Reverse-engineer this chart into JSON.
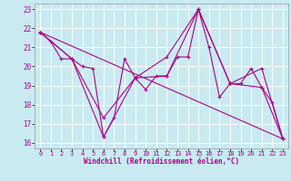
{
  "background_color": "#c8eaf0",
  "grid_color": "#ffffff",
  "line_color": "#aa0088",
  "xlabel": "Windchill (Refroidissement éolien,°C)",
  "xlim": [
    -0.5,
    23.5
  ],
  "ylim": [
    15.7,
    23.3
  ],
  "yticks": [
    16,
    17,
    18,
    19,
    20,
    21,
    22,
    23
  ],
  "xticks": [
    0,
    1,
    2,
    3,
    4,
    5,
    6,
    7,
    8,
    9,
    10,
    11,
    12,
    13,
    14,
    15,
    16,
    17,
    18,
    19,
    20,
    21,
    22,
    23
  ],
  "series": [
    {
      "x": [
        0,
        1,
        2,
        3,
        4,
        5,
        6,
        7,
        8,
        9,
        10,
        11,
        12,
        13,
        14,
        15,
        16,
        17,
        18,
        19,
        20,
        21,
        22,
        23
      ],
      "y": [
        21.8,
        21.3,
        20.4,
        20.4,
        20.0,
        19.9,
        16.3,
        17.3,
        20.4,
        19.4,
        18.8,
        19.5,
        19.5,
        20.5,
        20.5,
        23.0,
        21.0,
        18.4,
        19.1,
        19.1,
        19.9,
        18.9,
        18.1,
        16.2
      ]
    },
    {
      "x": [
        0,
        23
      ],
      "y": [
        21.8,
        16.2
      ]
    },
    {
      "x": [
        0,
        3,
        6,
        9,
        12,
        15,
        18,
        21,
        23
      ],
      "y": [
        21.8,
        20.4,
        16.3,
        19.4,
        19.5,
        23.0,
        19.1,
        18.9,
        16.2
      ]
    },
    {
      "x": [
        0,
        3,
        6,
        9,
        12,
        15,
        18,
        21,
        23
      ],
      "y": [
        21.8,
        20.4,
        17.3,
        19.4,
        20.5,
        23.0,
        19.1,
        19.9,
        16.2
      ]
    }
  ]
}
